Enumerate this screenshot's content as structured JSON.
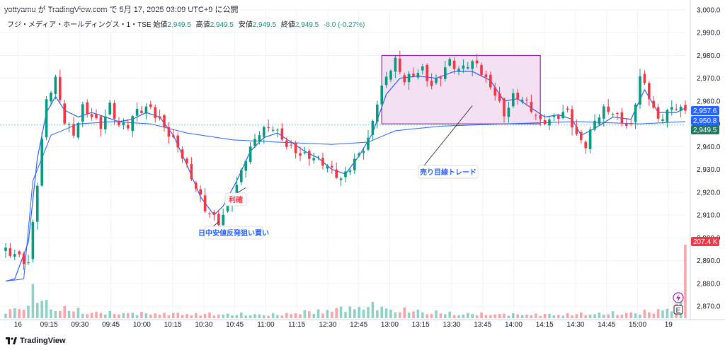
{
  "header": {
    "publish_line": "yottyamu が TradingView.com で 5月 17, 2025 03:09 UTC+9 に公開"
  },
  "legend": {
    "symbol": "フジ・メディア・ホールディングス・1・TSE",
    "open_label": "始値",
    "open": "2,949.5",
    "high_label": "高値",
    "high": "2,949.5",
    "low_label": "安値",
    "low": "2,949.5",
    "close_label": "終値",
    "close": "2,949.5",
    "change": "-8.0 (-0.27%)"
  },
  "colors": {
    "up": "#089981",
    "down": "#f23645",
    "ma": "#2962ff",
    "vwap": "#2962ff",
    "box_fill": "#f3e1f3",
    "box_stroke": "#9c27b0",
    "price_tag": "#1e7b5f",
    "vol_tag": "#f23645",
    "grid": "#f0f3fa"
  },
  "price_tags": [
    {
      "label": "2,957.6",
      "price": 2957.6,
      "color": "#2962ff"
    },
    {
      "label": "2,950.8",
      "price": 2950.8,
      "color": "#2962ff"
    },
    {
      "label": "2,949.5",
      "price": 2949.5,
      "color": "#1e7b5f"
    }
  ],
  "volume_tag": {
    "label": "207.4 K"
  },
  "callouts": [
    {
      "text": "利確",
      "color": "#f23645"
    },
    {
      "text": "日中安値反発狙い買い",
      "color": "#2962ff"
    },
    {
      "text": "売り目線トレード",
      "color": "#2962ff"
    }
  ],
  "footer": {
    "brand": "TradingView"
  },
  "icons": {
    "alert": "lightning-icon",
    "earnings": "earnings-e-icon",
    "brand": "tradingview-logo-icon"
  },
  "chart_data": {
    "type": "candlestick",
    "y_ticks": [
      "3,000.0",
      "2,990.0",
      "2,980.0",
      "2,970.0",
      "2,960.0",
      "2,950.0",
      "2,940.0",
      "2,930.0",
      "2,920.0",
      "2,910.0",
      "2,900.0",
      "2,890.0",
      "2,880.0",
      "2,870.0"
    ],
    "y_range": [
      2866,
      3000
    ],
    "x_ticks": [
      "16",
      "09:15",
      "09:30",
      "09:45",
      "10:00",
      "10:15",
      "10:30",
      "10:45",
      "11:00",
      "11:15",
      "12:30",
      "12:45",
      "13:00",
      "13:15",
      "13:30",
      "13:45",
      "14:00",
      "14:15",
      "14:30",
      "14:45",
      "15:00",
      "19"
    ],
    "price_keypoints": [
      [
        0,
        2894
      ],
      [
        3,
        2893
      ],
      [
        5,
        2890
      ],
      [
        7,
        2925
      ],
      [
        9,
        2960
      ],
      [
        11,
        2968
      ],
      [
        13,
        2950
      ],
      [
        15,
        2945
      ],
      [
        17,
        2958
      ],
      [
        19,
        2955
      ],
      [
        21,
        2950
      ],
      [
        23,
        2958
      ],
      [
        25,
        2948
      ],
      [
        27,
        2948
      ],
      [
        29,
        2955
      ],
      [
        32,
        2958
      ],
      [
        35,
        2950
      ],
      [
        38,
        2940
      ],
      [
        41,
        2925
      ],
      [
        44,
        2912
      ],
      [
        47,
        2908
      ],
      [
        50,
        2918
      ],
      [
        53,
        2935
      ],
      [
        56,
        2945
      ],
      [
        59,
        2948
      ],
      [
        62,
        2942
      ],
      [
        65,
        2938
      ],
      [
        68,
        2935
      ],
      [
        71,
        2930
      ],
      [
        74,
        2925
      ],
      [
        77,
        2935
      ],
      [
        80,
        2944
      ],
      [
        82,
        2960
      ],
      [
        84,
        2970
      ],
      [
        86,
        2976
      ],
      [
        88,
        2968
      ],
      [
        90,
        2972
      ],
      [
        92,
        2975
      ],
      [
        94,
        2968
      ],
      [
        96,
        2972
      ],
      [
        98,
        2977
      ],
      [
        100,
        2972
      ],
      [
        102,
        2975
      ],
      [
        104,
        2976
      ],
      [
        106,
        2970
      ],
      [
        108,
        2965
      ],
      [
        110,
        2955
      ],
      [
        112,
        2962
      ],
      [
        114,
        2960
      ],
      [
        116,
        2955
      ],
      [
        118,
        2950
      ],
      [
        120,
        2952
      ],
      [
        122,
        2955
      ],
      [
        124,
        2957
      ],
      [
        126,
        2945
      ],
      [
        128,
        2940
      ],
      [
        130,
        2950
      ],
      [
        132,
        2955
      ],
      [
        134,
        2955
      ],
      [
        136,
        2952
      ],
      [
        138,
        2950
      ],
      [
        140,
        2972
      ],
      [
        142,
        2962
      ],
      [
        144,
        2950
      ],
      [
        146,
        2954
      ],
      [
        148,
        2957
      ],
      [
        150,
        2956
      ]
    ],
    "ma_keypoints": [
      [
        0,
        2881
      ],
      [
        2,
        2882
      ],
      [
        5,
        2898
      ],
      [
        7,
        2935
      ],
      [
        9,
        2955
      ],
      [
        11,
        2962
      ],
      [
        13,
        2956
      ],
      [
        16,
        2953
      ],
      [
        19,
        2955
      ],
      [
        22,
        2953
      ],
      [
        25,
        2951
      ],
      [
        28,
        2952
      ],
      [
        31,
        2955
      ],
      [
        34,
        2953
      ],
      [
        37,
        2945
      ],
      [
        40,
        2932
      ],
      [
        43,
        2918
      ],
      [
        46,
        2910
      ],
      [
        48,
        2914
      ],
      [
        51,
        2925
      ],
      [
        54,
        2938
      ],
      [
        57,
        2944
      ],
      [
        60,
        2946
      ],
      [
        63,
        2942
      ],
      [
        66,
        2938
      ],
      [
        69,
        2935
      ],
      [
        72,
        2930
      ],
      [
        75,
        2928
      ],
      [
        78,
        2936
      ],
      [
        81,
        2946
      ],
      [
        84,
        2963
      ],
      [
        87,
        2970
      ],
      [
        91,
        2971
      ],
      [
        95,
        2970
      ],
      [
        99,
        2973
      ],
      [
        103,
        2973
      ],
      [
        107,
        2969
      ],
      [
        110,
        2960
      ],
      [
        113,
        2961
      ],
      [
        116,
        2957
      ],
      [
        119,
        2953
      ],
      [
        122,
        2954
      ],
      [
        125,
        2952
      ],
      [
        127,
        2945
      ],
      [
        130,
        2948
      ],
      [
        134,
        2953
      ],
      [
        138,
        2952
      ],
      [
        141,
        2965
      ],
      [
        144,
        2955
      ],
      [
        148,
        2955
      ],
      [
        150,
        2957
      ]
    ],
    "vwap_keypoints": [
      [
        0,
        2881
      ],
      [
        4,
        2882
      ],
      [
        6,
        2925
      ],
      [
        10,
        2945
      ],
      [
        16,
        2950
      ],
      [
        24,
        2951
      ],
      [
        32,
        2950
      ],
      [
        40,
        2946
      ],
      [
        50,
        2943
      ],
      [
        60,
        2942
      ],
      [
        72,
        2941
      ],
      [
        80,
        2942
      ],
      [
        86,
        2947
      ],
      [
        96,
        2949
      ],
      [
        110,
        2950
      ],
      [
        126,
        2951
      ],
      [
        140,
        2950
      ],
      [
        150,
        2951
      ]
    ],
    "volume_keypoints": [
      [
        0,
        0.2
      ],
      [
        4,
        0.3
      ],
      [
        6,
        0.7
      ],
      [
        8,
        0.5
      ],
      [
        10,
        0.3
      ],
      [
        20,
        0.15
      ],
      [
        40,
        0.12
      ],
      [
        60,
        0.1
      ],
      [
        82,
        0.35
      ],
      [
        84,
        0.25
      ],
      [
        100,
        0.12
      ],
      [
        120,
        0.1
      ],
      [
        140,
        0.15
      ],
      [
        148,
        0.3
      ],
      [
        150,
        1.0
      ]
    ]
  }
}
